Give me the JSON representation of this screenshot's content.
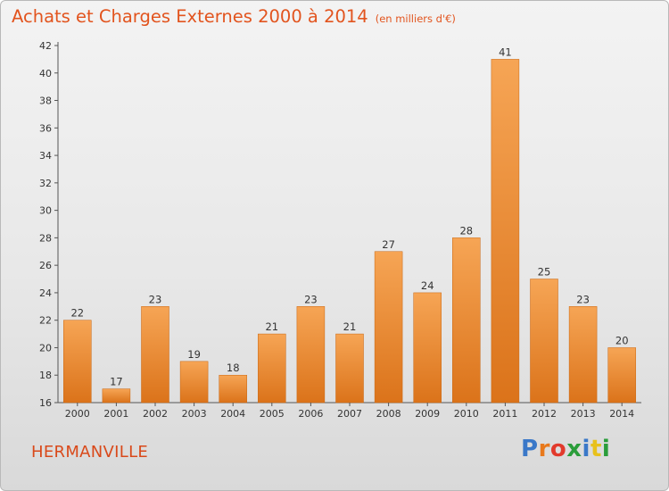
{
  "page": {
    "title": "Achats et Charges Externes 2000 à 2014",
    "unit": "(en milliers d'€)",
    "town": "HERMANVILLE",
    "brand": "Proxiti",
    "brand_colors": [
      "#3a78c8",
      "#e8791c",
      "#e23a2c",
      "#2a9d3a",
      "#3a78c8",
      "#e8c11c",
      "#2a9d3a"
    ]
  },
  "colors": {
    "bar_top": "#f6a555",
    "bar_bottom": "#db731a",
    "title": "#e2541e",
    "town": "#d9491a",
    "axis": "#555555"
  },
  "chart_data": {
    "type": "bar",
    "title": "Achats et Charges Externes 2000 à 2014",
    "subtitle": "(en milliers d'€)",
    "xlabel": "",
    "ylabel": "",
    "categories": [
      "2000",
      "2001",
      "2002",
      "2003",
      "2004",
      "2005",
      "2006",
      "2007",
      "2008",
      "2009",
      "2010",
      "2011",
      "2012",
      "2013",
      "2014"
    ],
    "values": [
      22,
      17,
      23,
      19,
      18,
      21,
      23,
      21,
      27,
      24,
      28,
      41,
      25,
      23,
      20
    ],
    "ylim": [
      16,
      42
    ],
    "yticks": [
      16,
      18,
      20,
      22,
      24,
      26,
      28,
      30,
      32,
      34,
      36,
      38,
      40,
      42
    ],
    "grid": false,
    "legend": "none"
  }
}
